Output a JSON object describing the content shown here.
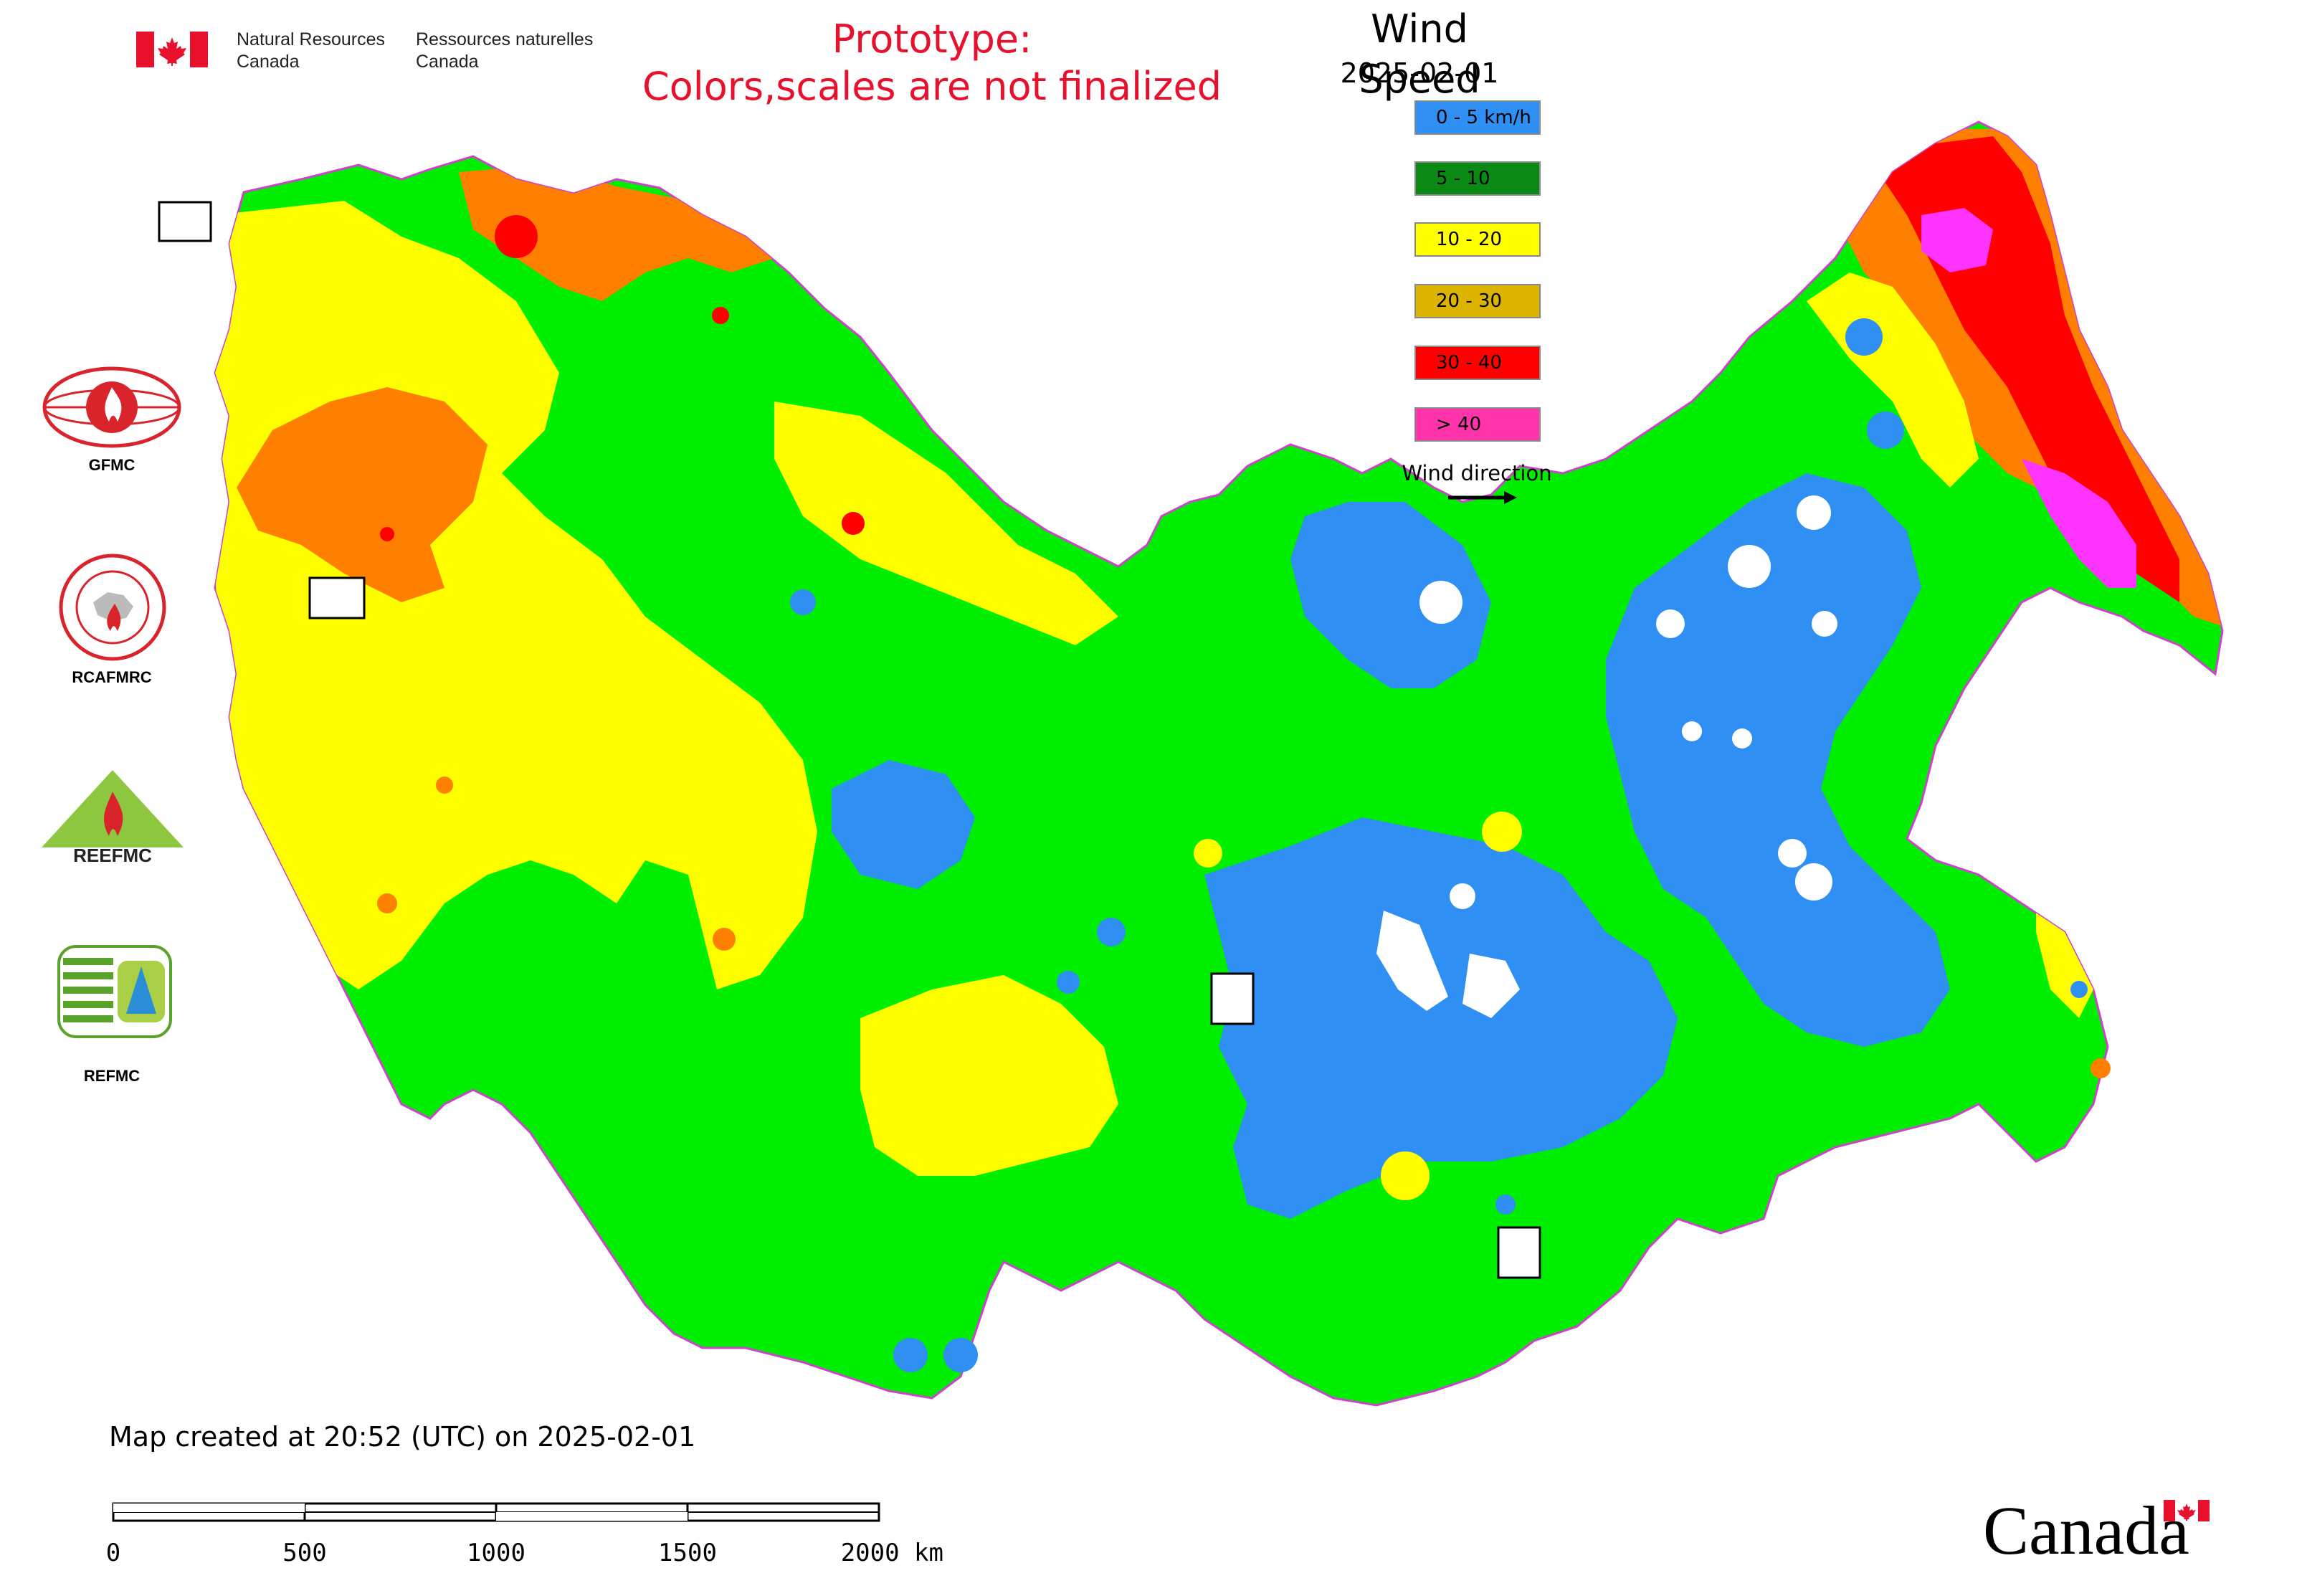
{
  "header": {
    "agency_en": [
      "Natural Resources",
      "Canada"
    ],
    "agency_fr": [
      "Ressources naturelles",
      "Canada"
    ],
    "notice": [
      "Prototype:",
      "Colors,scales are not finalized"
    ]
  },
  "legend": {
    "title": "Wind Speed",
    "date": "2025-02-01",
    "classes": [
      {
        "label": "0 - 5 km/h",
        "color": "#2f8ff2"
      },
      {
        "label": "5 - 10",
        "color": "#0a8a14"
      },
      {
        "label": "10 - 20",
        "color": "#ffff00"
      },
      {
        "label": "20 - 30",
        "color": "#dcb400"
      },
      {
        "label": "30 - 40",
        "color": "#ff0000"
      },
      {
        "label": "> 40",
        "color": "#ff33aa"
      }
    ],
    "wind_direction_label": "Wind direction"
  },
  "map_colors": {
    "low": "#2f8ff2",
    "moderate": "#00ee00",
    "breezy": "#ffff00",
    "strong": "#ff7f00",
    "very_strong": "#ff0000",
    "extreme": "#ff33ff",
    "border": "#cc44cc"
  },
  "logos": {
    "gfmc": "GFMC",
    "rcafmrc": "RCAFMRC",
    "reefmc": "REEFMC",
    "refmc": "REFMC"
  },
  "footer": {
    "created": "Map created at 20:52 (UTC) on 2025-02-01",
    "scale_ticks": [
      "0",
      "500",
      "1000",
      "1500",
      "2000 km"
    ],
    "wordmark": "Canada"
  }
}
